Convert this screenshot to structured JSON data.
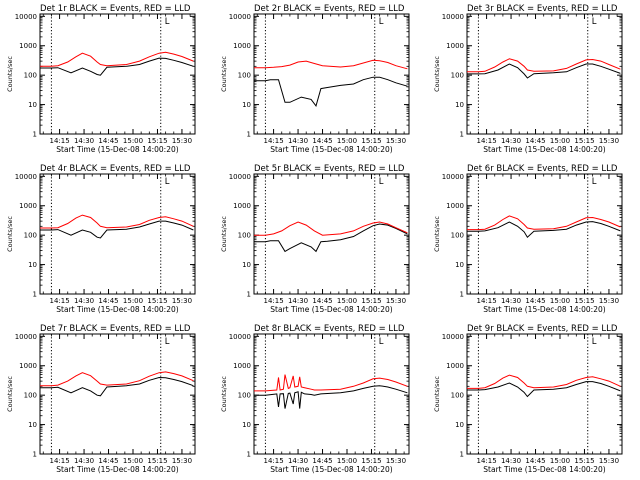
{
  "chart_data": {
    "type": "line",
    "layout": "3x3 grid",
    "ylabel": "Counts/sec",
    "xlabel": "Start Time (15-Dec-08 14:00:20)",
    "xlim": [
      "14:03",
      "15:38"
    ],
    "ylim": [
      1,
      12000
    ],
    "yscale": "log",
    "x_ticks": [
      "14:15",
      "14:30",
      "14:45",
      "15:00",
      "15:15",
      "15:30"
    ],
    "y_ticks": [
      "1",
      "10",
      "100",
      "1000",
      "10000"
    ],
    "markers": [
      "14:10",
      "15:17"
    ],
    "marker_label": "L",
    "colors": {
      "events": "#000000",
      "lld": "#ff0000"
    },
    "panels": [
      {
        "title": "Det 1r BLACK = Events, RED = LLD",
        "series": [
          {
            "key": "events",
            "x": [
              "14:03",
              "14:10",
              "14:14",
              "14:22",
              "14:29",
              "14:34",
              "14:38",
              "14:40",
              "14:44",
              "14:56",
              "15:04",
              "15:10",
              "15:16",
              "15:20",
              "15:25",
              "15:30",
              "15:37"
            ],
            "y": [
              175,
              175,
              180,
              120,
              175,
              135,
              105,
              100,
              185,
              200,
              230,
              300,
              380,
              370,
              320,
              270,
              200
            ]
          },
          {
            "key": "lld",
            "x": [
              "14:03",
              "14:10",
              "14:14",
              "14:20",
              "14:25",
              "14:29",
              "14:34",
              "14:38",
              "14:40",
              "14:44",
              "14:56",
              "15:04",
              "15:10",
              "15:16",
              "15:20",
              "15:25",
              "15:30",
              "15:37"
            ],
            "y": [
              200,
              200,
              210,
              280,
              420,
              560,
              440,
              280,
              230,
              210,
              230,
              300,
              420,
              560,
              600,
              520,
              430,
              300
            ]
          }
        ]
      },
      {
        "title": "Det 2r BLACK = Events, RED = LLD",
        "series": [
          {
            "key": "events",
            "x": [
              "14:03",
              "14:10",
              "14:13",
              "14:18",
              "14:22",
              "14:25",
              "14:32",
              "14:38",
              "14:41",
              "14:44",
              "14:48",
              "14:56",
              "15:04",
              "15:10",
              "15:16",
              "15:20",
              "15:25",
              "15:30",
              "15:37"
            ],
            "y": [
              65,
              65,
              70,
              70,
              12,
              12,
              18,
              15,
              9,
              35,
              38,
              45,
              50,
              70,
              85,
              85,
              70,
              55,
              42
            ]
          },
          {
            "key": "lld",
            "x": [
              "14:03",
              "14:10",
              "14:15",
              "14:20",
              "14:25",
              "14:30",
              "14:35",
              "14:40",
              "14:45",
              "14:56",
              "15:04",
              "15:10",
              "15:16",
              "15:20",
              "15:25",
              "15:30",
              "15:37"
            ],
            "y": [
              180,
              180,
              185,
              195,
              220,
              280,
              300,
              250,
              210,
              190,
              210,
              260,
              320,
              310,
              270,
              210,
              165
            ]
          }
        ]
      },
      {
        "title": "Det 3r BLACK = Events, RED = LLD",
        "series": [
          {
            "key": "events",
            "x": [
              "14:03",
              "14:10",
              "14:14",
              "14:22",
              "14:29",
              "14:34",
              "14:38",
              "14:40",
              "14:44",
              "14:56",
              "15:04",
              "15:10",
              "15:16",
              "15:20",
              "15:25",
              "15:30",
              "15:37"
            ],
            "y": [
              110,
              110,
              112,
              150,
              240,
              180,
              110,
              80,
              112,
              120,
              130,
              180,
              240,
              240,
              200,
              160,
              115
            ]
          },
          {
            "key": "lld",
            "x": [
              "14:03",
              "14:10",
              "14:14",
              "14:20",
              "14:25",
              "14:29",
              "14:34",
              "14:38",
              "14:40",
              "14:44",
              "14:56",
              "15:04",
              "15:10",
              "15:16",
              "15:20",
              "15:25",
              "15:30",
              "15:37"
            ],
            "y": [
              130,
              130,
              135,
              190,
              280,
              360,
              300,
              200,
              150,
              135,
              140,
              170,
              240,
              330,
              340,
              300,
              230,
              160
            ]
          }
        ]
      },
      {
        "title": "Det 4r BLACK = Events, RED = LLD",
        "series": [
          {
            "key": "events",
            "x": [
              "14:03",
              "14:10",
              "14:14",
              "14:22",
              "14:29",
              "14:34",
              "14:38",
              "14:40",
              "14:44",
              "14:56",
              "15:04",
              "15:10",
              "15:16",
              "15:20",
              "15:25",
              "15:30",
              "15:37"
            ],
            "y": [
              150,
              150,
              155,
              100,
              150,
              125,
              85,
              80,
              150,
              160,
              190,
              240,
              300,
              300,
              260,
              220,
              150
            ]
          },
          {
            "key": "lld",
            "x": [
              "14:03",
              "14:10",
              "14:14",
              "14:20",
              "14:25",
              "14:29",
              "14:34",
              "14:38",
              "14:40",
              "14:44",
              "14:56",
              "15:04",
              "15:10",
              "15:16",
              "15:20",
              "15:25",
              "15:30",
              "15:37"
            ],
            "y": [
              175,
              175,
              180,
              250,
              380,
              480,
              400,
              260,
              200,
              180,
              190,
              230,
              320,
              400,
              420,
              360,
              300,
              200
            ]
          }
        ]
      },
      {
        "title": "Det 5r BLACK = Events, RED = LLD",
        "series": [
          {
            "key": "events",
            "x": [
              "14:03",
              "14:10",
              "14:13",
              "14:18",
              "14:22",
              "14:25",
              "14:32",
              "14:38",
              "14:41",
              "14:44",
              "14:48",
              "14:56",
              "15:04",
              "15:10",
              "15:16",
              "15:20",
              "15:25",
              "15:30",
              "15:37"
            ],
            "y": [
              60,
              60,
              65,
              65,
              28,
              35,
              55,
              40,
              28,
              60,
              62,
              70,
              90,
              140,
              210,
              240,
              220,
              170,
              110
            ]
          },
          {
            "key": "lld",
            "x": [
              "14:03",
              "14:10",
              "14:15",
              "14:20",
              "14:25",
              "14:30",
              "14:35",
              "14:40",
              "14:45",
              "14:56",
              "15:04",
              "15:10",
              "15:16",
              "15:20",
              "15:25",
              "15:30",
              "15:37"
            ],
            "y": [
              100,
              100,
              110,
              140,
              210,
              280,
              220,
              140,
              100,
              110,
              140,
              200,
              260,
              280,
              240,
              180,
              120
            ]
          }
        ]
      },
      {
        "title": "Det 6r BLACK = Events, RED = LLD",
        "series": [
          {
            "key": "events",
            "x": [
              "14:03",
              "14:10",
              "14:14",
              "14:22",
              "14:29",
              "14:34",
              "14:38",
              "14:40",
              "14:44",
              "14:56",
              "15:04",
              "15:10",
              "15:16",
              "15:20",
              "15:25",
              "15:30",
              "15:37"
            ],
            "y": [
              135,
              135,
              140,
              180,
              280,
              200,
              130,
              85,
              135,
              145,
              160,
              220,
              280,
              290,
              250,
              200,
              140
            ]
          },
          {
            "key": "lld",
            "x": [
              "14:03",
              "14:10",
              "14:14",
              "14:20",
              "14:25",
              "14:29",
              "14:34",
              "14:38",
              "14:40",
              "14:44",
              "14:56",
              "15:04",
              "15:10",
              "15:16",
              "15:20",
              "15:25",
              "15:30",
              "15:37"
            ],
            "y": [
              155,
              155,
              160,
              220,
              340,
              450,
              360,
              230,
              175,
              160,
              165,
              200,
              280,
              390,
              400,
              340,
              280,
              190
            ]
          }
        ]
      },
      {
        "title": "Det 7r BLACK = Events, RED = LLD",
        "series": [
          {
            "key": "events",
            "x": [
              "14:03",
              "14:10",
              "14:14",
              "14:22",
              "14:29",
              "14:34",
              "14:38",
              "14:40",
              "14:44",
              "14:56",
              "15:04",
              "15:10",
              "15:16",
              "15:20",
              "15:25",
              "15:30",
              "15:37"
            ],
            "y": [
              180,
              180,
              185,
              120,
              180,
              140,
              100,
              95,
              190,
              210,
              240,
              320,
              400,
              390,
              340,
              290,
              210
            ]
          },
          {
            "key": "lld",
            "x": [
              "14:03",
              "14:10",
              "14:14",
              "14:20",
              "14:25",
              "14:29",
              "14:34",
              "14:38",
              "14:40",
              "14:44",
              "14:56",
              "15:04",
              "15:10",
              "15:16",
              "15:20",
              "15:25",
              "15:30",
              "15:37"
            ],
            "y": [
              210,
              210,
              220,
              300,
              450,
              580,
              460,
              300,
              240,
              220,
              240,
              310,
              440,
              580,
              620,
              540,
              450,
              310
            ]
          }
        ]
      },
      {
        "title": "Det 8r BLACK = Events, RED = LLD",
        "series": [
          {
            "key": "events",
            "x": [
              "14:03",
              "14:10",
              "14:14",
              "14:17",
              "14:18",
              "14:19",
              "14:21",
              "14:22",
              "14:24",
              "14:25",
              "14:27",
              "14:28",
              "14:30",
              "14:31",
              "14:32",
              "14:34",
              "14:38",
              "14:40",
              "14:44",
              "14:56",
              "15:04",
              "15:10",
              "15:16",
              "15:20",
              "15:25",
              "15:30",
              "15:37"
            ],
            "y": [
              100,
              100,
              105,
              110,
              40,
              110,
              112,
              35,
              115,
              118,
              50,
              120,
              130,
              35,
              125,
              110,
              105,
              100,
              110,
              120,
              140,
              170,
              200,
              210,
              190,
              160,
              120
            ]
          },
          {
            "key": "lld",
            "x": [
              "14:03",
              "14:10",
              "14:14",
              "14:17",
              "14:18",
              "14:19",
              "14:21",
              "14:22",
              "14:24",
              "14:25",
              "14:27",
              "14:28",
              "14:30",
              "14:31",
              "14:32",
              "14:34",
              "14:38",
              "14:40",
              "14:44",
              "14:56",
              "15:04",
              "15:10",
              "15:16",
              "15:20",
              "15:25",
              "15:30",
              "15:37"
            ],
            "y": [
              140,
              140,
              145,
              150,
              400,
              150,
              160,
              500,
              170,
              180,
              450,
              190,
              200,
              420,
              190,
              180,
              160,
              150,
              150,
              160,
              200,
              260,
              360,
              380,
              340,
              280,
              200
            ]
          }
        ]
      },
      {
        "title": "Det 9r BLACK = Events, RED = LLD",
        "series": [
          {
            "key": "events",
            "x": [
              "14:03",
              "14:10",
              "14:14",
              "14:22",
              "14:29",
              "14:34",
              "14:38",
              "14:40",
              "14:44",
              "14:56",
              "15:04",
              "15:10",
              "15:16",
              "15:20",
              "15:25",
              "15:30",
              "15:37"
            ],
            "y": [
              150,
              150,
              155,
              190,
              260,
              190,
              125,
              90,
              150,
              160,
              180,
              230,
              290,
              290,
              250,
              200,
              140
            ]
          },
          {
            "key": "lld",
            "x": [
              "14:03",
              "14:10",
              "14:14",
              "14:20",
              "14:25",
              "14:29",
              "14:34",
              "14:38",
              "14:40",
              "14:44",
              "14:56",
              "15:04",
              "15:10",
              "15:16",
              "15:20",
              "15:25",
              "15:30",
              "15:37"
            ],
            "y": [
              170,
              170,
              180,
              250,
              380,
              480,
              400,
              260,
              200,
              180,
              190,
              230,
              320,
              400,
              420,
              360,
              300,
              200
            ]
          }
        ]
      }
    ]
  }
}
